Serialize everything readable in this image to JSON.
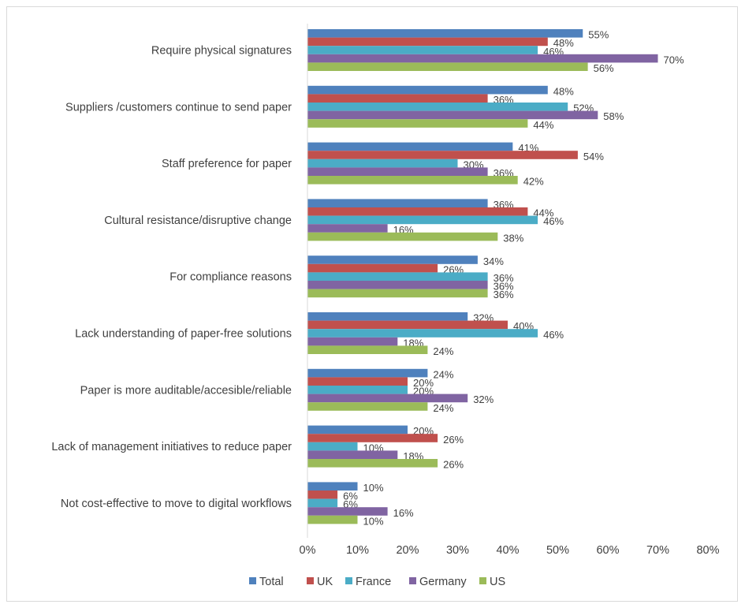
{
  "chart_data": {
    "type": "bar",
    "orientation": "horizontal",
    "title": "",
    "xlabel": "",
    "ylabel": "",
    "xlim": [
      0,
      80
    ],
    "x_ticks": [
      "0%",
      "10%",
      "20%",
      "30%",
      "40%",
      "50%",
      "60%",
      "70%",
      "80%"
    ],
    "grid": false,
    "legend_position": "bottom",
    "categories": [
      "Require physical signatures",
      "Suppliers /customers continue to send  paper",
      "Staff preference for paper",
      "Cultural resistance/disruptive change",
      "For compliance reasons",
      "Lack understanding of paper-free solutions",
      "Paper is more auditable/accesible/reliable",
      "Lack of management initiatives to reduce paper",
      "Not cost-effective to move to digital workflows"
    ],
    "series": [
      {
        "name": "Total",
        "color": "#4f81bd",
        "values": [
          55,
          48,
          41,
          36,
          34,
          32,
          24,
          20,
          10
        ]
      },
      {
        "name": "UK",
        "color": "#c0504d",
        "values": [
          48,
          36,
          54,
          44,
          26,
          40,
          20,
          26,
          6
        ]
      },
      {
        "name": "France",
        "color": "#4bacc6",
        "values": [
          46,
          52,
          30,
          46,
          36,
          46,
          20,
          10,
          6
        ]
      },
      {
        "name": "Germany",
        "color": "#8064a2",
        "values": [
          70,
          58,
          36,
          16,
          36,
          18,
          32,
          18,
          16
        ]
      },
      {
        "name": "US",
        "color": "#9bbb59",
        "values": [
          56,
          44,
          42,
          38,
          36,
          24,
          24,
          26,
          10
        ]
      }
    ],
    "value_suffix": "%"
  }
}
